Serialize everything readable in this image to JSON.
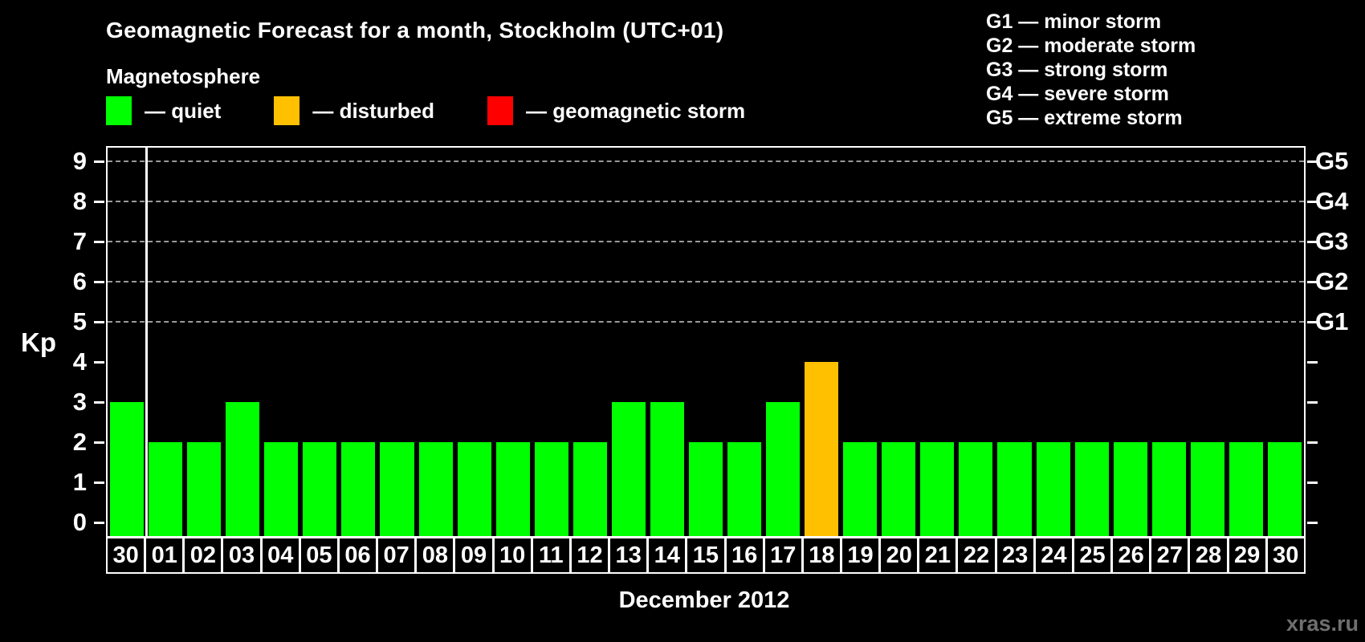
{
  "header": {
    "title": "Geomagnetic Forecast for a month, Stockholm (UTC+01)",
    "subtitle": "Magnetosphere",
    "kp_legend": [
      {
        "key": "quiet",
        "label": "— quiet",
        "color": "#00ff00"
      },
      {
        "key": "disturbed",
        "label": "— disturbed",
        "color": "#ffc000"
      },
      {
        "key": "storm",
        "label": "— geomagnetic storm",
        "color": "#ff0000"
      }
    ],
    "g_legend": [
      "G1 — minor storm",
      "G2 — moderate storm",
      "G3 — strong storm",
      "G4 — severe storm",
      "G5 — extreme storm"
    ]
  },
  "chart_data": {
    "type": "bar",
    "title": "Geomagnetic Forecast for a month, Stockholm (UTC+01)",
    "xlabel": "December 2012",
    "ylabel": "Kp",
    "ylim": [
      0,
      9
    ],
    "grid": "dashed horizontal lines only at Kp 5-9 (G1-G5 levels)",
    "legend_position": "top",
    "categories": [
      "30",
      "01",
      "02",
      "03",
      "04",
      "05",
      "06",
      "07",
      "08",
      "09",
      "10",
      "11",
      "12",
      "13",
      "14",
      "15",
      "16",
      "17",
      "18",
      "19",
      "20",
      "21",
      "22",
      "23",
      "24",
      "25",
      "26",
      "27",
      "28",
      "29",
      "30"
    ],
    "values": [
      3,
      2,
      2,
      3,
      2,
      2,
      2,
      2,
      2,
      2,
      2,
      2,
      2,
      3,
      3,
      2,
      2,
      3,
      4,
      2,
      2,
      2,
      2,
      2,
      2,
      2,
      2,
      2,
      2,
      2,
      2
    ],
    "statuses": [
      "quiet",
      "quiet",
      "quiet",
      "quiet",
      "quiet",
      "quiet",
      "quiet",
      "quiet",
      "quiet",
      "quiet",
      "quiet",
      "quiet",
      "quiet",
      "quiet",
      "quiet",
      "quiet",
      "quiet",
      "quiet",
      "disturbed",
      "quiet",
      "quiet",
      "quiet",
      "quiet",
      "quiet",
      "quiet",
      "quiet",
      "quiet",
      "quiet",
      "quiet",
      "quiet",
      "quiet"
    ],
    "status_colors": {
      "quiet": "#00ff00",
      "disturbed": "#ffc000",
      "storm": "#ff0000"
    },
    "left_ticks": [
      0,
      1,
      2,
      3,
      4,
      5,
      6,
      7,
      8,
      9
    ],
    "right_axis_labels": [
      {
        "kp": 5,
        "label": "G1"
      },
      {
        "kp": 6,
        "label": "G2"
      },
      {
        "kp": 7,
        "label": "G3"
      },
      {
        "kp": 8,
        "label": "G4"
      },
      {
        "kp": 9,
        "label": "G5"
      }
    ],
    "gridlines_at": [
      5,
      6,
      7,
      8,
      9
    ],
    "separator_after_index": 0
  },
  "footer": {
    "xaxis_title": "December 2012",
    "watermark": "xras.ru"
  }
}
